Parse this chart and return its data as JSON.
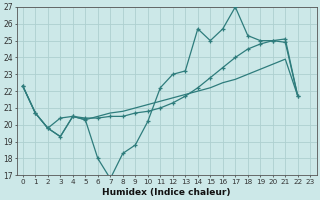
{
  "xlabel": "Humidex (Indice chaleur)",
  "background_color": "#cce8e8",
  "grid_color": "#aed0d0",
  "line_color": "#2e7c7c",
  "xlim": [
    -0.5,
    23.5
  ],
  "ylim": [
    17,
    27
  ],
  "xticks": [
    0,
    1,
    2,
    3,
    4,
    5,
    6,
    7,
    8,
    9,
    10,
    11,
    12,
    13,
    14,
    15,
    16,
    17,
    18,
    19,
    20,
    21,
    22,
    23
  ],
  "yticks": [
    17,
    18,
    19,
    20,
    21,
    22,
    23,
    24,
    25,
    26,
    27
  ],
  "line1_x": [
    0,
    1,
    2,
    3,
    4,
    5,
    6,
    7,
    8,
    9,
    10,
    11,
    12,
    13,
    14,
    15,
    16,
    17,
    18,
    19,
    20,
    21,
    22
  ],
  "line1_y": [
    22.3,
    20.7,
    19.8,
    19.3,
    20.5,
    20.3,
    18.0,
    16.8,
    18.3,
    18.8,
    20.2,
    22.2,
    23.0,
    23.2,
    25.7,
    25.0,
    25.7,
    27.0,
    25.3,
    25.0,
    25.0,
    24.9,
    21.7
  ],
  "line2_x": [
    0,
    1,
    2,
    3,
    4,
    5,
    6,
    7,
    8,
    9,
    10,
    11,
    12,
    13,
    14,
    15,
    16,
    17,
    18,
    19,
    20,
    21,
    22
  ],
  "line2_y": [
    22.3,
    20.7,
    19.8,
    19.3,
    20.5,
    20.3,
    20.5,
    20.7,
    20.8,
    21.0,
    21.2,
    21.4,
    21.6,
    21.8,
    22.0,
    22.2,
    22.5,
    22.7,
    23.0,
    23.3,
    23.6,
    23.9,
    21.7
  ],
  "line3_x": [
    0,
    1,
    2,
    3,
    4,
    5,
    6,
    7,
    8,
    9,
    10,
    11,
    12,
    13,
    14,
    15,
    16,
    17,
    18,
    19,
    20,
    21,
    22
  ],
  "line3_y": [
    22.3,
    20.7,
    19.8,
    20.4,
    20.5,
    20.4,
    20.4,
    20.5,
    20.5,
    20.7,
    20.8,
    21.0,
    21.3,
    21.7,
    22.2,
    22.8,
    23.4,
    24.0,
    24.5,
    24.8,
    25.0,
    25.1,
    21.7
  ]
}
